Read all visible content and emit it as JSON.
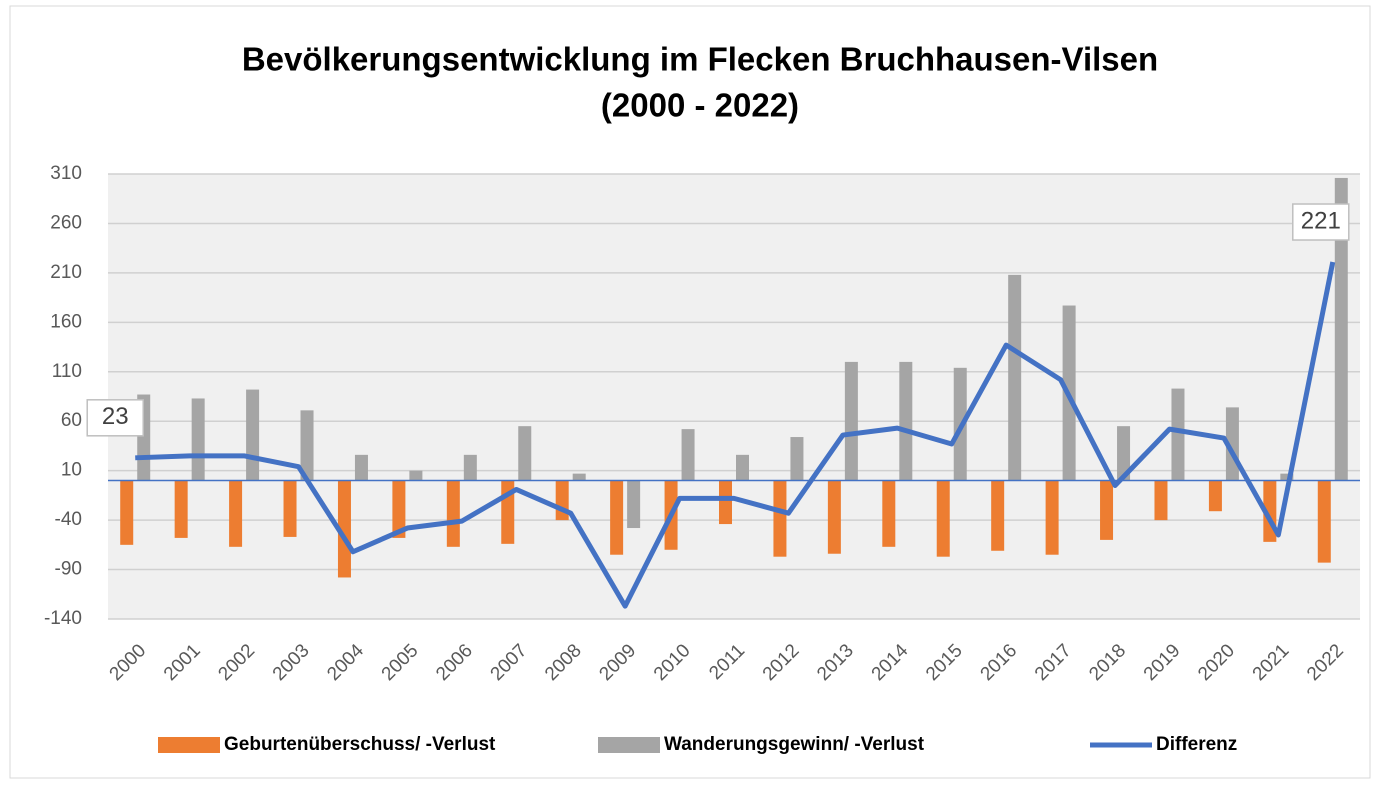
{
  "chart_data": {
    "type": "bar_line",
    "title": [
      "Bevölkerungsentwicklung im Flecken Bruchhausen-Vilsen",
      "(2000 - 2022)"
    ],
    "categories": [
      "2000",
      "2001",
      "2002",
      "2003",
      "2004",
      "2005",
      "2006",
      "2007",
      "2008",
      "2009",
      "2010",
      "2011",
      "2012",
      "2013",
      "2014",
      "2015",
      "2016",
      "2017",
      "2018",
      "2019",
      "2020",
      "2021",
      "2022"
    ],
    "series": [
      {
        "name": "Geburtenüberschuss/ -Verlust",
        "type": "bar",
        "color": "#ed7d31",
        "values": [
          -65,
          -58,
          -67,
          -57,
          -98,
          -58,
          -67,
          -64,
          -40,
          -75,
          -70,
          -44,
          -77,
          -74,
          -67,
          -77,
          -71,
          -75,
          -60,
          -40,
          -31,
          -62,
          -83
        ]
      },
      {
        "name": "Wanderungsgewinn/ -Verlust",
        "type": "bar",
        "color": "#a5a5a5",
        "values": [
          87,
          83,
          92,
          71,
          26,
          10,
          26,
          55,
          7,
          -48,
          52,
          26,
          44,
          120,
          120,
          114,
          208,
          177,
          55,
          93,
          74,
          7,
          306
        ]
      },
      {
        "name": "Differenz",
        "type": "line",
        "color": "#4472c4",
        "values": [
          23,
          25,
          25,
          14,
          -72,
          -48,
          -41,
          -9,
          -33,
          -127,
          -18,
          -18,
          -33,
          46,
          53,
          37,
          137,
          102,
          -5,
          52,
          43,
          -55,
          221
        ],
        "value_labels": [
          "23",
          null,
          null,
          null,
          null,
          null,
          null,
          null,
          null,
          null,
          null,
          null,
          null,
          null,
          null,
          null,
          null,
          null,
          null,
          null,
          null,
          null,
          "221"
        ]
      }
    ],
    "ylim": [
      -140,
      310
    ],
    "yticks": [
      -140,
      -90,
      -40,
      10,
      60,
      110,
      160,
      210,
      260,
      310
    ],
    "grid": true,
    "legend": "bottom"
  }
}
